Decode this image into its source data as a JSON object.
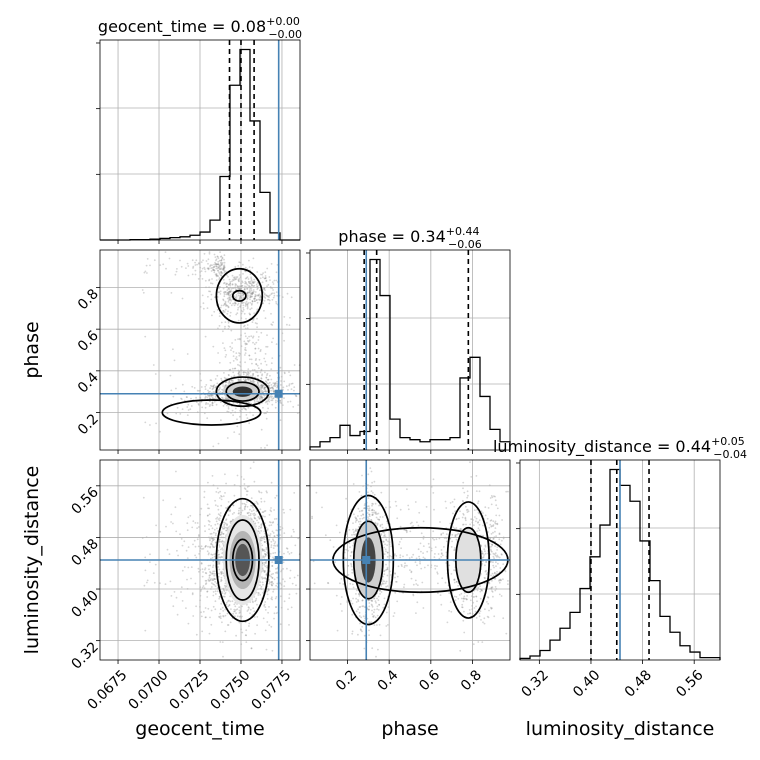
{
  "colors": {
    "truth": "#4682b4",
    "hist": "#000000",
    "grid": "#b0b0b0",
    "scatter": "#888888"
  },
  "chart_data": {
    "type": "corner",
    "parameters": [
      "geocent_time",
      "phase",
      "luminosity_distance"
    ],
    "truths": {
      "geocent_time": 0.0773,
      "phase": 0.29,
      "luminosity_distance": 0.445
    },
    "titles": [
      {
        "param": "geocent_time",
        "text": "geocent_time = 0.08",
        "sup": "+0.00",
        "sub": "−0.00"
      },
      {
        "param": "phase",
        "text": "phase = 0.34",
        "sup": "+0.44",
        "sub": "−0.06"
      },
      {
        "param": "luminosity_distance",
        "text": "luminosity_distance = 0.44",
        "sup": "+0.05",
        "sub": "−0.04"
      }
    ],
    "axis_labels": {
      "geocent_time": "geocent_time",
      "phase": "phase",
      "luminosity_distance": "luminosity_distance"
    },
    "ranges": {
      "geocent_time": [
        0.0664,
        0.0786
      ],
      "phase": [
        0.02,
        0.98
      ],
      "luminosity_distance": [
        0.29,
        0.6
      ]
    },
    "ticks": {
      "geocent_time": [
        "0.0675",
        "0.0700",
        "0.0725",
        "0.0750",
        "0.0775"
      ],
      "phase": [
        "0.2",
        "0.4",
        "0.6",
        "0.8"
      ],
      "luminosity_distance": [
        "0.32",
        "0.40",
        "0.48",
        "0.56"
      ]
    },
    "quantiles": {
      "geocent_time": [
        0.0743,
        0.075,
        0.0758
      ],
      "phase": [
        0.28,
        0.34,
        0.78
      ],
      "luminosity_distance": [
        0.4,
        0.44,
        0.49
      ]
    },
    "histograms": {
      "geocent_time": {
        "edges_start": 0.0664,
        "bin_width": 0.00061,
        "counts": [
          0,
          0,
          0,
          1,
          1,
          2,
          4,
          6,
          8,
          12,
          20,
          50,
          160,
          390,
          480,
          300,
          120,
          18,
          0,
          0
        ]
      },
      "phase": {
        "edges_start": 0.02,
        "bin_width": 0.048,
        "counts": [
          3,
          8,
          12,
          24,
          14,
          18,
          185,
          150,
          30,
          12,
          10,
          8,
          10,
          10,
          12,
          70,
          90,
          52,
          20,
          8
        ]
      },
      "luminosity_distance": {
        "edges_start": 0.29,
        "bin_width": 0.0155,
        "counts": [
          2,
          5,
          12,
          25,
          40,
          60,
          90,
          130,
          170,
          240,
          220,
          200,
          150,
          100,
          55,
          35,
          18,
          10,
          3,
          3
        ]
      }
    },
    "grid": true
  }
}
